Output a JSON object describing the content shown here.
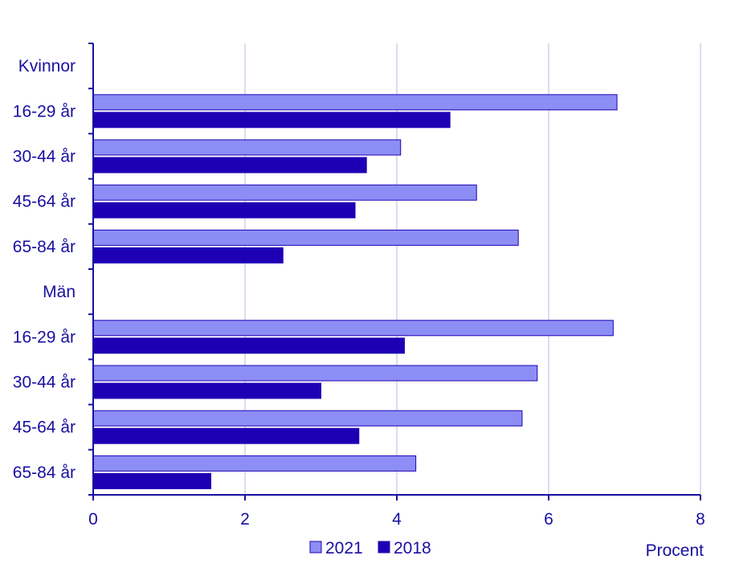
{
  "chart_data": {
    "type": "bar",
    "orientation": "horizontal",
    "categories": [
      "Kvinnor",
      "16-29 år",
      "30-44 år",
      "45-64 år",
      "65-84 år",
      "Män",
      "16-29 år",
      "30-44 år",
      "45-64 år",
      "65-84 år"
    ],
    "series": [
      {
        "name": "2021",
        "values": [
          null,
          6.9,
          4.05,
          5.05,
          5.6,
          null,
          6.85,
          5.85,
          5.65,
          4.25
        ]
      },
      {
        "name": "2018",
        "values": [
          null,
          4.7,
          3.6,
          3.45,
          2.5,
          null,
          4.1,
          3.0,
          3.5,
          1.55
        ]
      }
    ],
    "xlim": [
      0,
      8
    ],
    "xticks": [
      "0",
      "2",
      "4",
      "6",
      "8"
    ],
    "xlabel": "Procent",
    "ylabel": "",
    "title": "",
    "grid": "vertical",
    "legend_position": "bottom"
  },
  "colors": {
    "series_2021": "#8c8ef5",
    "series_2018": "#1e00b4",
    "text": "#1a0fa0",
    "axis": "#1a0fa0",
    "grid": "#d0d0ec"
  }
}
